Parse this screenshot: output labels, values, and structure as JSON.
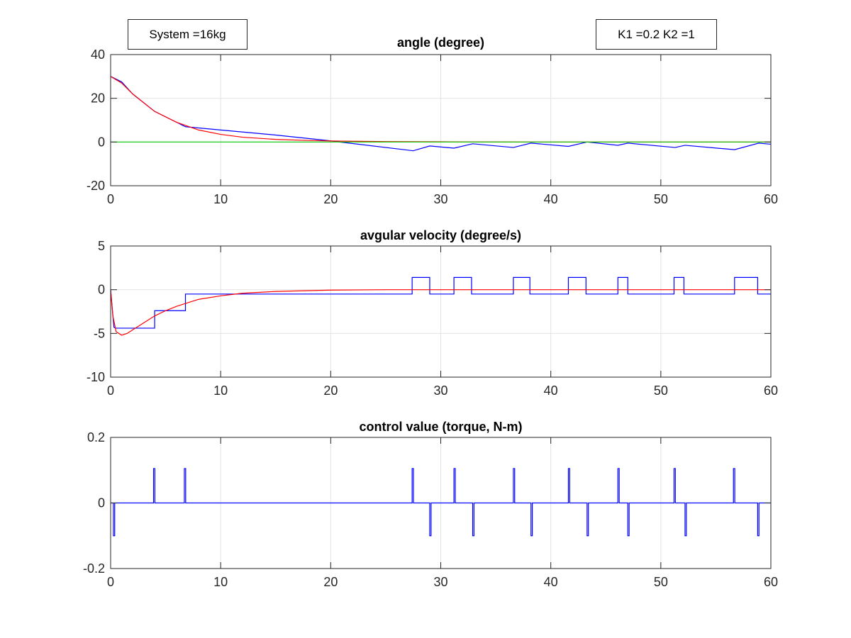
{
  "annotations": {
    "system": "System =16kg",
    "gains": "K1 =0.2 K2 =1"
  },
  "chart_data": [
    {
      "type": "line",
      "title": "angle (degree)",
      "xlabel": "",
      "ylabel": "",
      "xlim": [
        0,
        60
      ],
      "ylim": [
        -20,
        40
      ],
      "xticks": [
        0,
        10,
        20,
        30,
        40,
        50,
        60
      ],
      "yticks": [
        -20,
        0,
        20,
        40
      ],
      "grid": true,
      "series": [
        {
          "color": "#0000ff",
          "x": [
            0,
            1,
            2,
            4,
            6.8,
            10,
            15,
            19.5,
            27.5,
            29,
            31.2,
            32.9,
            36.6,
            38.2,
            41.6,
            43.3,
            46.1,
            47,
            51.3,
            52.2,
            56.7,
            58.9,
            60
          ],
          "y": [
            30,
            27.5,
            22,
            14,
            7,
            5.5,
            3.2,
            0.8,
            -4,
            -1.8,
            -2.8,
            -0.8,
            -2.5,
            -0.5,
            -2,
            0,
            -1.5,
            -0.5,
            -2.5,
            -1.5,
            -3.5,
            -0.5,
            -1
          ]
        },
        {
          "color": "#ff0000",
          "x": [
            0,
            1,
            2,
            4,
            6,
            8,
            10,
            12,
            15,
            18,
            21,
            25,
            30,
            40,
            60
          ],
          "y": [
            30,
            27,
            22,
            14,
            9,
            5.5,
            3.5,
            2.2,
            1.2,
            0.7,
            0.4,
            0.2,
            0.1,
            0,
            0
          ]
        },
        {
          "color": "#00cc00",
          "x": [
            0,
            60
          ],
          "y": [
            0,
            0
          ]
        }
      ]
    },
    {
      "type": "line",
      "title": "avgular velocity (degree/s)",
      "xlabel": "",
      "ylabel": "",
      "xlim": [
        0,
        60
      ],
      "ylim": [
        -10,
        5
      ],
      "xticks": [
        0,
        10,
        20,
        30,
        40,
        50,
        60
      ],
      "yticks": [
        -10,
        -5,
        0,
        5
      ],
      "grid": true,
      "series": [
        {
          "color": "#0000ff",
          "x": [
            0,
            0.3,
            0.45,
            4,
            4,
            6.8,
            6.8,
            27.4,
            27.4,
            29,
            29,
            31.2,
            31.2,
            32.8,
            32.8,
            36.6,
            36.6,
            38.1,
            38.1,
            41.6,
            41.6,
            43.2,
            43.2,
            46.1,
            46.1,
            47,
            47,
            51.2,
            51.2,
            52.1,
            52.1,
            56.7,
            56.7,
            58.8,
            58.8,
            60
          ],
          "y": [
            0,
            -4.3,
            -4.4,
            -4.4,
            -2.4,
            -2.4,
            -0.5,
            -0.5,
            1.4,
            1.4,
            -0.5,
            -0.5,
            1.4,
            1.4,
            -0.5,
            -0.5,
            1.4,
            1.4,
            -0.5,
            -0.5,
            1.4,
            1.4,
            -0.5,
            -0.5,
            1.4,
            1.4,
            -0.5,
            -0.5,
            1.4,
            1.4,
            -0.5,
            -0.5,
            1.4,
            1.4,
            -0.5,
            -0.5
          ]
        },
        {
          "color": "#ff0000",
          "x": [
            0,
            0.2,
            0.5,
            1,
            1.5,
            2,
            3,
            4,
            5,
            6,
            8,
            10,
            12,
            15,
            20,
            25,
            30,
            40,
            60
          ],
          "y": [
            0,
            -3,
            -4.8,
            -5.2,
            -5,
            -4.6,
            -3.8,
            -3,
            -2.4,
            -1.9,
            -1.1,
            -0.7,
            -0.4,
            -0.2,
            -0.05,
            0,
            0,
            0,
            0
          ]
        }
      ]
    },
    {
      "type": "line",
      "title": "control value (torque, N-m)",
      "xlabel": "",
      "ylabel": "",
      "xlim": [
        0,
        60
      ],
      "ylim": [
        -0.2,
        0.2
      ],
      "xticks": [
        0,
        10,
        20,
        30,
        40,
        50,
        60
      ],
      "yticks": [
        -0.2,
        0,
        0.2
      ],
      "grid": true,
      "baseline": 0,
      "pulse_width": 0.12,
      "pulses": [
        {
          "t": 0.25,
          "v": -0.1
        },
        {
          "t": 3.9,
          "v": 0.105
        },
        {
          "t": 6.7,
          "v": 0.105
        },
        {
          "t": 27.4,
          "v": 0.105
        },
        {
          "t": 29,
          "v": -0.1
        },
        {
          "t": 31.2,
          "v": 0.105
        },
        {
          "t": 32.9,
          "v": -0.1
        },
        {
          "t": 36.6,
          "v": 0.105
        },
        {
          "t": 38.2,
          "v": -0.1
        },
        {
          "t": 41.6,
          "v": 0.105
        },
        {
          "t": 43.3,
          "v": -0.1
        },
        {
          "t": 46.1,
          "v": 0.105
        },
        {
          "t": 47,
          "v": -0.1
        },
        {
          "t": 51.2,
          "v": 0.105
        },
        {
          "t": 52.2,
          "v": -0.1
        },
        {
          "t": 56.6,
          "v": 0.105
        },
        {
          "t": 58.8,
          "v": -0.1
        }
      ],
      "color": "#0000ff"
    }
  ]
}
